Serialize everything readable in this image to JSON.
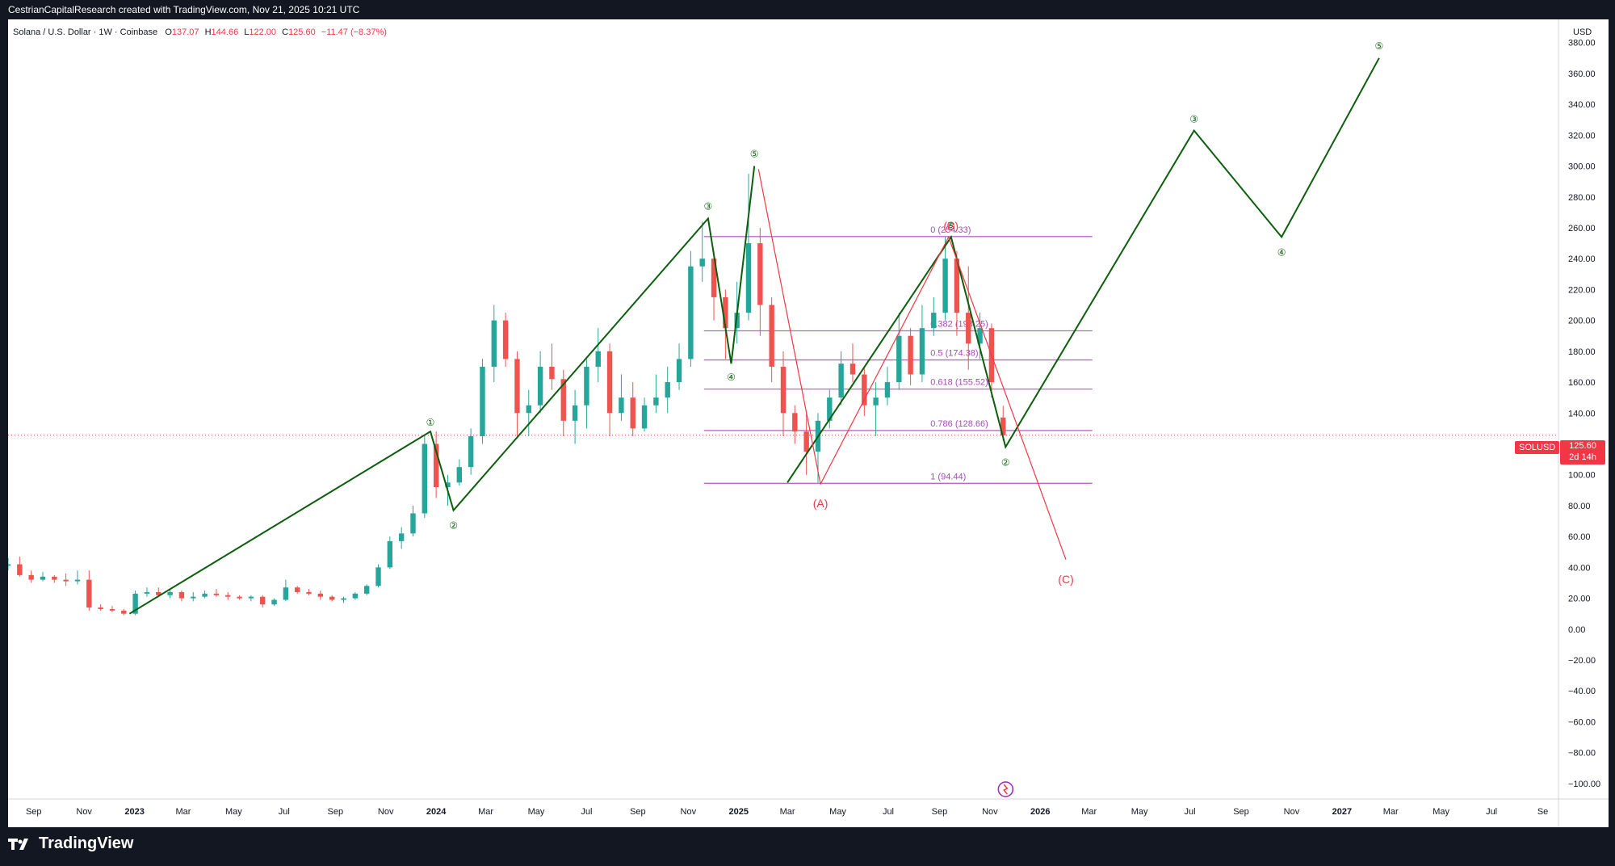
{
  "header": {
    "attribution": "CestrianCapitalResearch created with TradingView.com, Nov 21, 2025 10:21 UTC"
  },
  "footer": {
    "brand": "TradingView"
  },
  "legend": {
    "title": "Solana / U.S. Dollar · 1W · Coinbase",
    "open_label": "O",
    "open": "137.07",
    "high_label": "H",
    "high": "144.66",
    "low_label": "L",
    "low": "122.00",
    "close_label": "C",
    "close": "125.60",
    "change": "−11.47 (−8.37%)"
  },
  "currency": "USD",
  "price_label": {
    "symbol": "SOLUSD",
    "price": "125.60",
    "countdown": "2d 14h"
  },
  "colors": {
    "up": "#26a69a",
    "down": "#ef5350",
    "wave": "#0b5e0b",
    "corrective": "#f23645",
    "fib": "#9c27b0"
  },
  "chart_data": {
    "type": "candlestick",
    "timeframe": "1W",
    "ylim": [
      -110,
      395
    ],
    "y_ticks": [
      380,
      360,
      340,
      320,
      300,
      280,
      260,
      240,
      220,
      200,
      180,
      160,
      140,
      120,
      100,
      80,
      60,
      40,
      20,
      0,
      -20,
      -40,
      -60,
      -80,
      -100
    ],
    "y_tick_labels": [
      "380.00",
      "360.00",
      "340.00",
      "320.00",
      "300.00",
      "280.00",
      "260.00",
      "240.00",
      "220.00",
      "200.00",
      "180.00",
      "160.00",
      "140.00",
      "120.00",
      "100.00",
      "80.00",
      "60.00",
      "40.00",
      "20.00",
      "0.00",
      "−20.00",
      "−40.00",
      "−60.00",
      "−80.00",
      "−100.00"
    ],
    "x_range": [
      "2022-08-01",
      "2027-09-20"
    ],
    "x_ticks": [
      {
        "date": "2022-09-01",
        "label": "Sep"
      },
      {
        "date": "2022-11-01",
        "label": "Nov"
      },
      {
        "date": "2023-01-01",
        "label": "2023",
        "major": true
      },
      {
        "date": "2023-03-01",
        "label": "Mar"
      },
      {
        "date": "2023-05-01",
        "label": "May"
      },
      {
        "date": "2023-07-01",
        "label": "Jul"
      },
      {
        "date": "2023-09-01",
        "label": "Sep"
      },
      {
        "date": "2023-11-01",
        "label": "Nov"
      },
      {
        "date": "2024-01-01",
        "label": "2024",
        "major": true
      },
      {
        "date": "2024-03-01",
        "label": "Mar"
      },
      {
        "date": "2024-05-01",
        "label": "May"
      },
      {
        "date": "2024-07-01",
        "label": "Jul"
      },
      {
        "date": "2024-09-01",
        "label": "Sep"
      },
      {
        "date": "2024-11-01",
        "label": "Nov"
      },
      {
        "date": "2025-01-01",
        "label": "2025",
        "major": true
      },
      {
        "date": "2025-03-01",
        "label": "Mar"
      },
      {
        "date": "2025-05-01",
        "label": "May"
      },
      {
        "date": "2025-07-01",
        "label": "Jul"
      },
      {
        "date": "2025-09-01",
        "label": "Sep"
      },
      {
        "date": "2025-11-01",
        "label": "Nov"
      },
      {
        "date": "2026-01-01",
        "label": "2026",
        "major": true
      },
      {
        "date": "2026-03-01",
        "label": "Mar"
      },
      {
        "date": "2026-05-01",
        "label": "May"
      },
      {
        "date": "2026-07-01",
        "label": "Jul"
      },
      {
        "date": "2026-09-01",
        "label": "Sep"
      },
      {
        "date": "2026-11-01",
        "label": "Nov"
      },
      {
        "date": "2027-01-01",
        "label": "2027",
        "major": true
      },
      {
        "date": "2027-03-01",
        "label": "Mar"
      },
      {
        "date": "2027-05-01",
        "label": "May"
      },
      {
        "date": "2027-07-01",
        "label": "Jul"
      },
      {
        "date": "2027-09-01",
        "label": "Se"
      }
    ],
    "last_price": 125.6,
    "candles": [
      {
        "d": "2022-08-01",
        "o": 41,
        "h": 46,
        "l": 38,
        "c": 42
      },
      {
        "d": "2022-08-15",
        "o": 42,
        "h": 47,
        "l": 34,
        "c": 35
      },
      {
        "d": "2022-08-29",
        "o": 35,
        "h": 38,
        "l": 30,
        "c": 32
      },
      {
        "d": "2022-09-12",
        "o": 32,
        "h": 37,
        "l": 31,
        "c": 34
      },
      {
        "d": "2022-09-26",
        "o": 34,
        "h": 35,
        "l": 30,
        "c": 32
      },
      {
        "d": "2022-10-10",
        "o": 32,
        "h": 36,
        "l": 28,
        "c": 31
      },
      {
        "d": "2022-10-24",
        "o": 31,
        "h": 38,
        "l": 29,
        "c": 32
      },
      {
        "d": "2022-11-07",
        "o": 32,
        "h": 38,
        "l": 12,
        "c": 14
      },
      {
        "d": "2022-11-21",
        "o": 14,
        "h": 16,
        "l": 12,
        "c": 13
      },
      {
        "d": "2022-12-05",
        "o": 13,
        "h": 15,
        "l": 11,
        "c": 12
      },
      {
        "d": "2022-12-19",
        "o": 12,
        "h": 13,
        "l": 9,
        "c": 10
      },
      {
        "d": "2023-01-02",
        "o": 10,
        "h": 25,
        "l": 9,
        "c": 23
      },
      {
        "d": "2023-01-16",
        "o": 23,
        "h": 27,
        "l": 21,
        "c": 24
      },
      {
        "d": "2023-01-30",
        "o": 24,
        "h": 27,
        "l": 21,
        "c": 22
      },
      {
        "d": "2023-02-13",
        "o": 22,
        "h": 26,
        "l": 20,
        "c": 24
      },
      {
        "d": "2023-02-27",
        "o": 24,
        "h": 25,
        "l": 18,
        "c": 20
      },
      {
        "d": "2023-03-13",
        "o": 20,
        "h": 24,
        "l": 18,
        "c": 21
      },
      {
        "d": "2023-03-27",
        "o": 21,
        "h": 25,
        "l": 20,
        "c": 23
      },
      {
        "d": "2023-04-10",
        "o": 23,
        "h": 26,
        "l": 21,
        "c": 22
      },
      {
        "d": "2023-04-24",
        "o": 22,
        "h": 24,
        "l": 19,
        "c": 21
      },
      {
        "d": "2023-05-08",
        "o": 21,
        "h": 22,
        "l": 19,
        "c": 20
      },
      {
        "d": "2023-05-22",
        "o": 20,
        "h": 22,
        "l": 18,
        "c": 21
      },
      {
        "d": "2023-06-05",
        "o": 21,
        "h": 22,
        "l": 14,
        "c": 16
      },
      {
        "d": "2023-06-19",
        "o": 16,
        "h": 20,
        "l": 15,
        "c": 19
      },
      {
        "d": "2023-07-03",
        "o": 19,
        "h": 32,
        "l": 18,
        "c": 27
      },
      {
        "d": "2023-07-17",
        "o": 27,
        "h": 28,
        "l": 23,
        "c": 24
      },
      {
        "d": "2023-07-31",
        "o": 24,
        "h": 26,
        "l": 22,
        "c": 23
      },
      {
        "d": "2023-08-14",
        "o": 23,
        "h": 25,
        "l": 19,
        "c": 21
      },
      {
        "d": "2023-08-28",
        "o": 21,
        "h": 22,
        "l": 18,
        "c": 19
      },
      {
        "d": "2023-09-11",
        "o": 19,
        "h": 21,
        "l": 17,
        "c": 20
      },
      {
        "d": "2023-09-25",
        "o": 20,
        "h": 24,
        "l": 19,
        "c": 23
      },
      {
        "d": "2023-10-09",
        "o": 23,
        "h": 29,
        "l": 22,
        "c": 28
      },
      {
        "d": "2023-10-23",
        "o": 28,
        "h": 42,
        "l": 27,
        "c": 40
      },
      {
        "d": "2023-11-06",
        "o": 40,
        "h": 60,
        "l": 39,
        "c": 57
      },
      {
        "d": "2023-11-20",
        "o": 57,
        "h": 66,
        "l": 52,
        "c": 62
      },
      {
        "d": "2023-12-04",
        "o": 62,
        "h": 80,
        "l": 60,
        "c": 75
      },
      {
        "d": "2023-12-18",
        "o": 75,
        "h": 126,
        "l": 72,
        "c": 120
      },
      {
        "d": "2024-01-01",
        "o": 120,
        "h": 128,
        "l": 85,
        "c": 92
      },
      {
        "d": "2024-01-15",
        "o": 92,
        "h": 100,
        "l": 80,
        "c": 95
      },
      {
        "d": "2024-01-29",
        "o": 95,
        "h": 110,
        "l": 93,
        "c": 105
      },
      {
        "d": "2024-02-12",
        "o": 105,
        "h": 130,
        "l": 100,
        "c": 125
      },
      {
        "d": "2024-02-26",
        "o": 125,
        "h": 175,
        "l": 120,
        "c": 170
      },
      {
        "d": "2024-03-11",
        "o": 170,
        "h": 210,
        "l": 160,
        "c": 200
      },
      {
        "d": "2024-03-25",
        "o": 200,
        "h": 205,
        "l": 170,
        "c": 175
      },
      {
        "d": "2024-04-08",
        "o": 175,
        "h": 180,
        "l": 125,
        "c": 140
      },
      {
        "d": "2024-04-22",
        "o": 140,
        "h": 155,
        "l": 125,
        "c": 145
      },
      {
        "d": "2024-05-06",
        "o": 145,
        "h": 180,
        "l": 140,
        "c": 170
      },
      {
        "d": "2024-05-20",
        "o": 170,
        "h": 185,
        "l": 155,
        "c": 162
      },
      {
        "d": "2024-06-03",
        "o": 162,
        "h": 168,
        "l": 125,
        "c": 135
      },
      {
        "d": "2024-06-17",
        "o": 135,
        "h": 155,
        "l": 120,
        "c": 145
      },
      {
        "d": "2024-07-01",
        "o": 145,
        "h": 175,
        "l": 130,
        "c": 170
      },
      {
        "d": "2024-07-15",
        "o": 170,
        "h": 195,
        "l": 160,
        "c": 180
      },
      {
        "d": "2024-07-29",
        "o": 180,
        "h": 185,
        "l": 125,
        "c": 140
      },
      {
        "d": "2024-08-12",
        "o": 140,
        "h": 165,
        "l": 135,
        "c": 150
      },
      {
        "d": "2024-08-26",
        "o": 150,
        "h": 160,
        "l": 125,
        "c": 130
      },
      {
        "d": "2024-09-09",
        "o": 130,
        "h": 150,
        "l": 128,
        "c": 145
      },
      {
        "d": "2024-09-23",
        "o": 145,
        "h": 165,
        "l": 140,
        "c": 150
      },
      {
        "d": "2024-10-07",
        "o": 150,
        "h": 170,
        "l": 140,
        "c": 160
      },
      {
        "d": "2024-10-21",
        "o": 160,
        "h": 185,
        "l": 155,
        "c": 175
      },
      {
        "d": "2024-11-04",
        "o": 175,
        "h": 245,
        "l": 170,
        "c": 235
      },
      {
        "d": "2024-11-18",
        "o": 235,
        "h": 264,
        "l": 225,
        "c": 240
      },
      {
        "d": "2024-12-02",
        "o": 240,
        "h": 245,
        "l": 200,
        "c": 215
      },
      {
        "d": "2024-12-16",
        "o": 215,
        "h": 220,
        "l": 175,
        "c": 195
      },
      {
        "d": "2024-12-30",
        "o": 195,
        "h": 225,
        "l": 185,
        "c": 205
      },
      {
        "d": "2025-01-13",
        "o": 205,
        "h": 295,
        "l": 200,
        "c": 250
      },
      {
        "d": "2025-01-27",
        "o": 250,
        "h": 260,
        "l": 190,
        "c": 210
      },
      {
        "d": "2025-02-10",
        "o": 210,
        "h": 215,
        "l": 160,
        "c": 170
      },
      {
        "d": "2025-02-24",
        "o": 170,
        "h": 180,
        "l": 125,
        "c": 140
      },
      {
        "d": "2025-03-10",
        "o": 140,
        "h": 145,
        "l": 120,
        "c": 128
      },
      {
        "d": "2025-03-24",
        "o": 128,
        "h": 140,
        "l": 100,
        "c": 115
      },
      {
        "d": "2025-04-07",
        "o": 115,
        "h": 140,
        "l": 95,
        "c": 135
      },
      {
        "d": "2025-04-21",
        "o": 135,
        "h": 155,
        "l": 130,
        "c": 150
      },
      {
        "d": "2025-05-05",
        "o": 150,
        "h": 180,
        "l": 145,
        "c": 172
      },
      {
        "d": "2025-05-19",
        "o": 172,
        "h": 185,
        "l": 160,
        "c": 165
      },
      {
        "d": "2025-06-02",
        "o": 165,
        "h": 170,
        "l": 138,
        "c": 145
      },
      {
        "d": "2025-06-16",
        "o": 145,
        "h": 160,
        "l": 125,
        "c": 150
      },
      {
        "d": "2025-06-30",
        "o": 150,
        "h": 170,
        "l": 145,
        "c": 160
      },
      {
        "d": "2025-07-14",
        "o": 160,
        "h": 205,
        "l": 155,
        "c": 190
      },
      {
        "d": "2025-07-28",
        "o": 190,
        "h": 195,
        "l": 158,
        "c": 165
      },
      {
        "d": "2025-08-11",
        "o": 165,
        "h": 210,
        "l": 160,
        "c": 195
      },
      {
        "d": "2025-08-25",
        "o": 195,
        "h": 215,
        "l": 190,
        "c": 205
      },
      {
        "d": "2025-09-08",
        "o": 205,
        "h": 254,
        "l": 200,
        "c": 240
      },
      {
        "d": "2025-09-22",
        "o": 240,
        "h": 245,
        "l": 190,
        "c": 205
      },
      {
        "d": "2025-10-06",
        "o": 205,
        "h": 235,
        "l": 168,
        "c": 185
      },
      {
        "d": "2025-10-20",
        "o": 185,
        "h": 205,
        "l": 175,
        "c": 195
      },
      {
        "d": "2025-11-03",
        "o": 195,
        "h": 198,
        "l": 150,
        "c": 160
      },
      {
        "d": "2025-11-17",
        "o": 137.07,
        "h": 144.66,
        "l": 122,
        "c": 125.6
      }
    ],
    "fib_levels": [
      {
        "ratio": 0,
        "value": 254.33,
        "label": "0 (254.33)"
      },
      {
        "ratio": 0.382,
        "value": 193.25,
        "label": "0.382 (193.25)"
      },
      {
        "ratio": 0.5,
        "value": 174.38,
        "label": "0.5 (174.38)"
      },
      {
        "ratio": 0.618,
        "value": 155.52,
        "label": "0.618 (155.52)"
      },
      {
        "ratio": 0.786,
        "value": 128.66,
        "label": "0.786 (128.66)"
      },
      {
        "ratio": 1,
        "value": 94.44,
        "label": "1 (94.44)"
      }
    ],
    "fib_range": [
      "2024-11-20",
      "2026-03-05"
    ],
    "wave_paths": [
      {
        "name": "impulse-primary",
        "color": "green",
        "points": [
          [
            "2022-12-26",
            10
          ],
          [
            "2023-12-25",
            128
          ],
          [
            "2024-01-22",
            77
          ],
          [
            "2024-11-25",
            266
          ],
          [
            "2024-12-23",
            172
          ],
          [
            "2025-01-20",
            300
          ]
        ]
      },
      {
        "name": "impulse-current",
        "color": "green",
        "points": [
          [
            "2025-03-01",
            95
          ],
          [
            "2025-09-15",
            254
          ],
          [
            "2025-11-20",
            118
          ],
          [
            "2026-07-06",
            323
          ],
          [
            "2026-10-20",
            254
          ],
          [
            "2027-02-15",
            370
          ]
        ]
      },
      {
        "name": "corrective",
        "color": "red",
        "points": [
          [
            "2025-01-25",
            298
          ],
          [
            "2025-04-10",
            94
          ],
          [
            "2025-09-12",
            254
          ],
          [
            "2026-02-01",
            45
          ]
        ]
      }
    ],
    "wave_labels": [
      {
        "text": "①",
        "d": "2023-12-25",
        "y": 128,
        "kind": "num",
        "dy": -12
      },
      {
        "text": "②",
        "d": "2024-01-22",
        "y": 77,
        "kind": "num",
        "dy": 18
      },
      {
        "text": "③",
        "d": "2024-11-25",
        "y": 266,
        "kind": "num",
        "dy": -16
      },
      {
        "text": "④",
        "d": "2024-12-23",
        "y": 172,
        "kind": "num",
        "dy": 16
      },
      {
        "text": "⑤",
        "d": "2025-01-20",
        "y": 300,
        "kind": "num",
        "dy": -16
      },
      {
        "text": "⑤",
        "d": "2025-09-15",
        "y": 254,
        "kind": "num",
        "dy": -15
      },
      {
        "text": "②",
        "d": "2025-11-20",
        "y": 118,
        "kind": "num",
        "dy": 18
      },
      {
        "text": "③",
        "d": "2026-07-06",
        "y": 323,
        "kind": "num",
        "dy": -15
      },
      {
        "text": "④",
        "d": "2026-10-20",
        "y": 254,
        "kind": "num",
        "dy": 18
      },
      {
        "text": "⑤",
        "d": "2027-02-15",
        "y": 370,
        "kind": "num",
        "dy": -16
      },
      {
        "text": "(A)",
        "d": "2025-04-10",
        "y": 94,
        "kind": "abc",
        "dy": 24
      },
      {
        "text": "(B)",
        "d": "2025-09-15",
        "y": 254,
        "kind": "abc",
        "dy": -14
      },
      {
        "text": "(C)",
        "d": "2026-02-01",
        "y": 45,
        "kind": "abc",
        "dy": 24
      }
    ]
  }
}
